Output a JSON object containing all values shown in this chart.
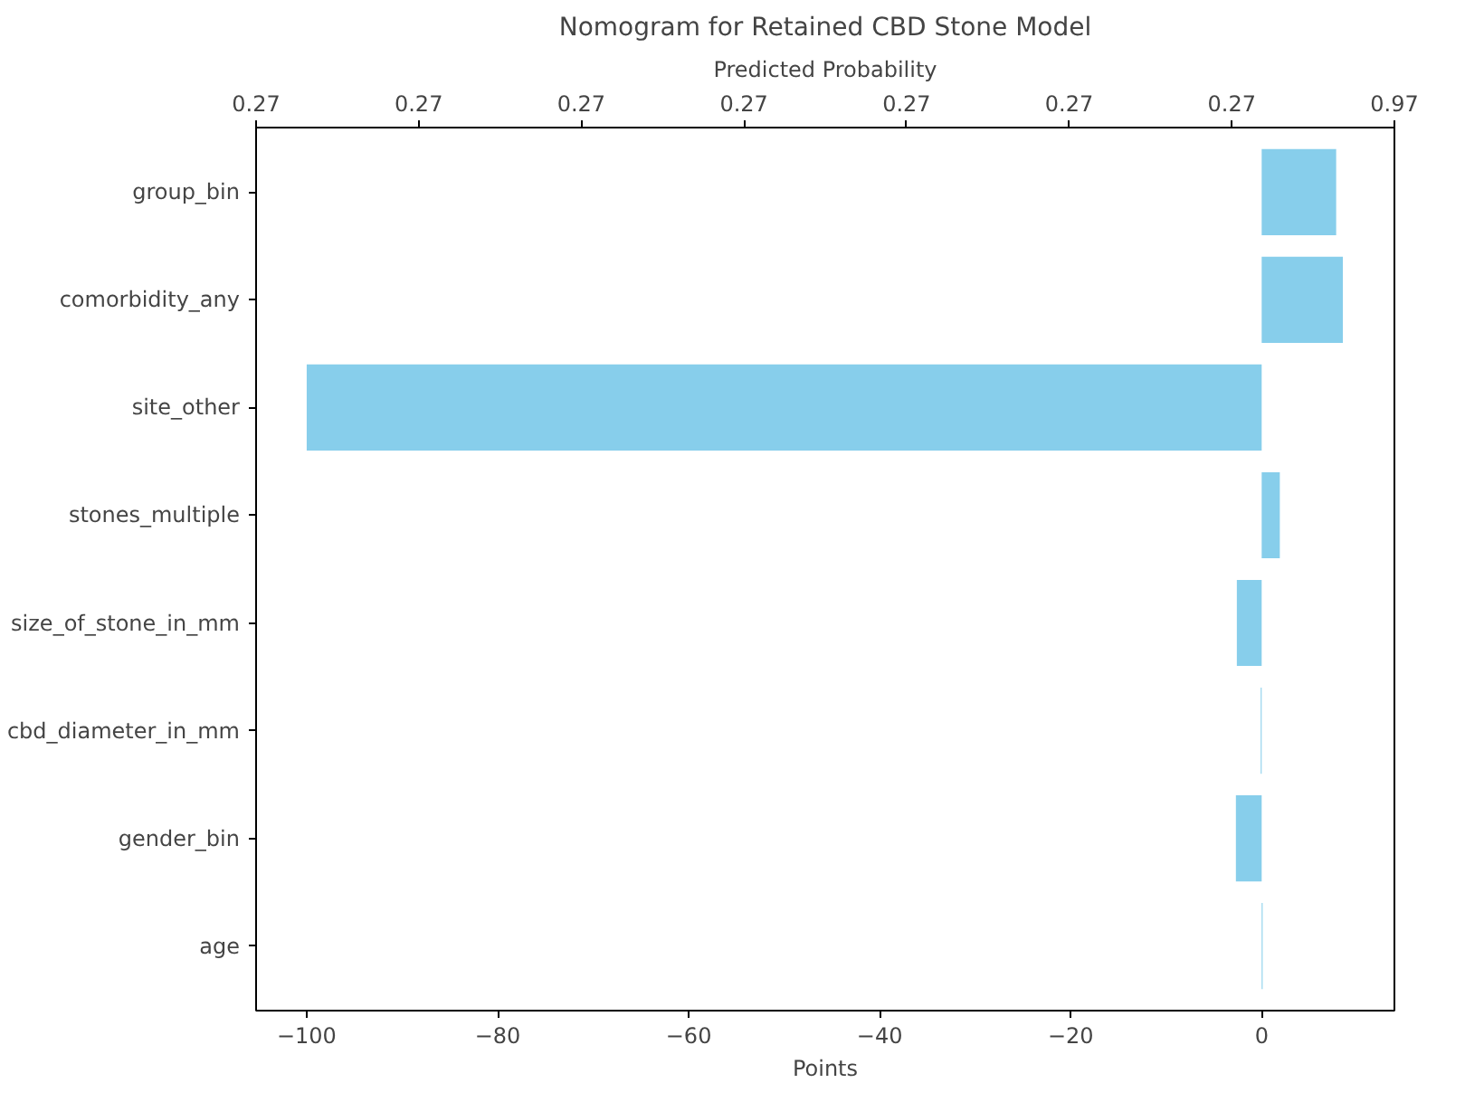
{
  "chart_data": {
    "type": "bar",
    "orientation": "horizontal",
    "title": "Nomogram for Retained CBD Stone Model",
    "xlabel": "Points",
    "x2label": "Predicted Probability",
    "categories": [
      "group_bin",
      "comorbidity_any",
      "site_other",
      "stones_multiple",
      "size_of_stone_in_mm",
      "cbd_diameter_in_mm",
      "gender_bin",
      "age"
    ],
    "values": [
      7.8,
      8.5,
      -100,
      1.9,
      -2.6,
      -0.1,
      -2.7,
      0.1
    ],
    "color": "#87ceeb",
    "xlim": [
      -105.3,
      13.9
    ],
    "xticks": [
      -100,
      -80,
      -60,
      -40,
      -20,
      0
    ],
    "annotations": [
      "0.27",
      "0.27",
      "0.27",
      "0.27",
      "0.27",
      "0.27",
      "0.27",
      "0.97"
    ],
    "grid": false
  }
}
